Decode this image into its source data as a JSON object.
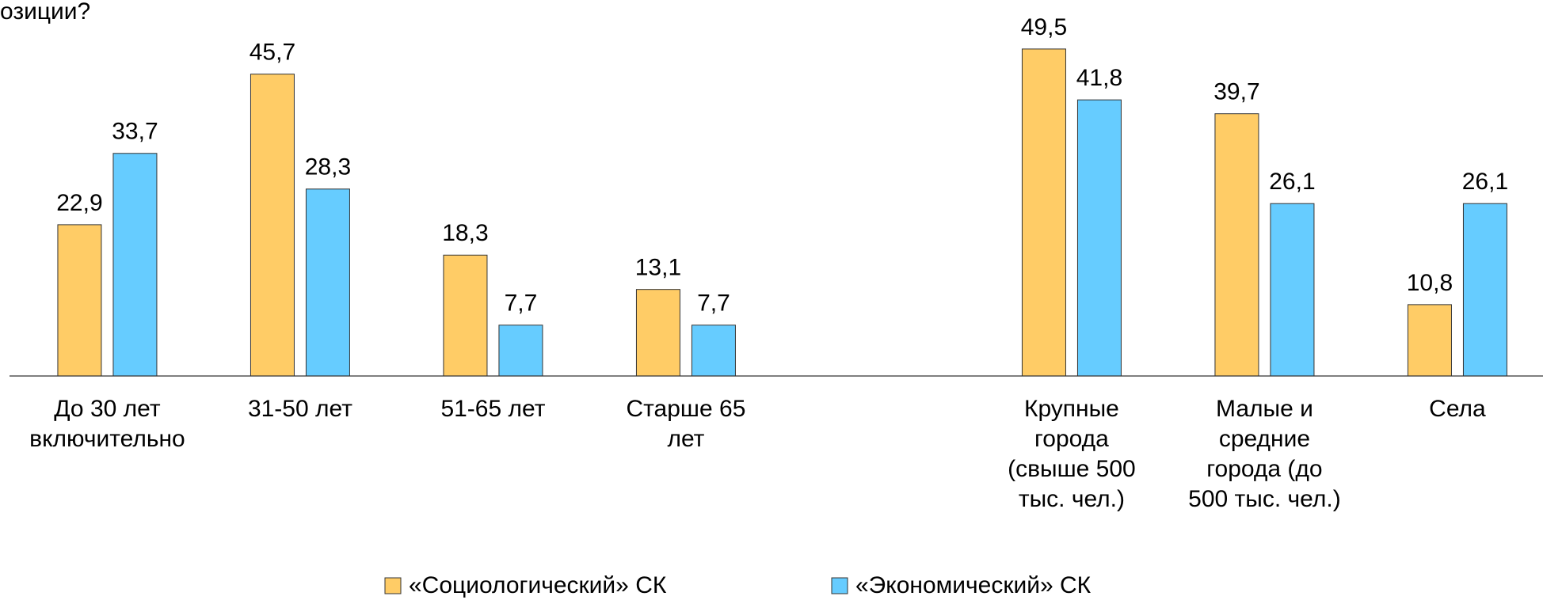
{
  "chart_data": {
    "type": "bar",
    "title": "озиции?",
    "categories": [
      "До 30 лет\nвключительно",
      "31-50 лет",
      "51-65 лет",
      "Старше 65\nлет",
      null,
      "Крупные\nгорода\n(свыше 500\nтыс. чел.)",
      "Малые и\nсредние\nгорода (до\n500 тыс. чел.)",
      "Села"
    ],
    "series": [
      {
        "name": "«Социологический» СК",
        "color": "#FFCC66",
        "values": [
          22.9,
          45.7,
          18.3,
          13.1,
          null,
          49.5,
          39.7,
          10.8
        ],
        "value_labels": [
          "22,9",
          "45,7",
          "18,3",
          "13,1",
          null,
          "49,5",
          "39,7",
          "10,8"
        ]
      },
      {
        "name": "«Экономический» СК",
        "color": "#66CCFF",
        "values": [
          33.7,
          28.3,
          7.7,
          7.7,
          null,
          41.8,
          26.1,
          26.1
        ],
        "value_labels": [
          "33,7",
          "28,3",
          "7,7",
          "7,7",
          null,
          "41,8",
          "26,1",
          "26,1"
        ]
      }
    ],
    "ylim": [
      0,
      55
    ],
    "grid": false,
    "legend": "bottom"
  }
}
